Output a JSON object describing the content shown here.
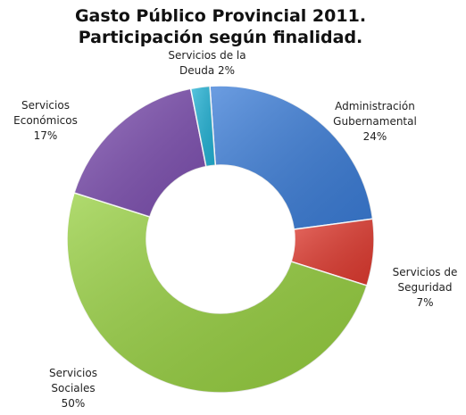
{
  "chart_data": {
    "type": "pie",
    "title": "Gasto Público Provincial 2011.",
    "subtitle": "Participación según finalidad.",
    "slices": [
      {
        "label_lines": [
          "Administración",
          "Gubernamental"
        ],
        "percent_label": "24%",
        "value": 24,
        "color": "#3b7dd8"
      },
      {
        "label_lines": [
          "Servicios de",
          "Seguridad"
        ],
        "percent_label": "7%",
        "value": 7,
        "color": "#e03a2f"
      },
      {
        "label_lines": [
          "Servicios",
          "Sociales"
        ],
        "percent_label": "50%",
        "value": 50,
        "color": "#96cf3f"
      },
      {
        "label_lines": [
          "Servicios",
          "Económicos"
        ],
        "percent_label": "17%",
        "value": 17,
        "color": "#7d4fb0"
      },
      {
        "label_lines": [
          "Servicios de la",
          "Deuda"
        ],
        "percent_label": "2%",
        "value": 2,
        "color": "#22b3d6"
      }
    ]
  }
}
